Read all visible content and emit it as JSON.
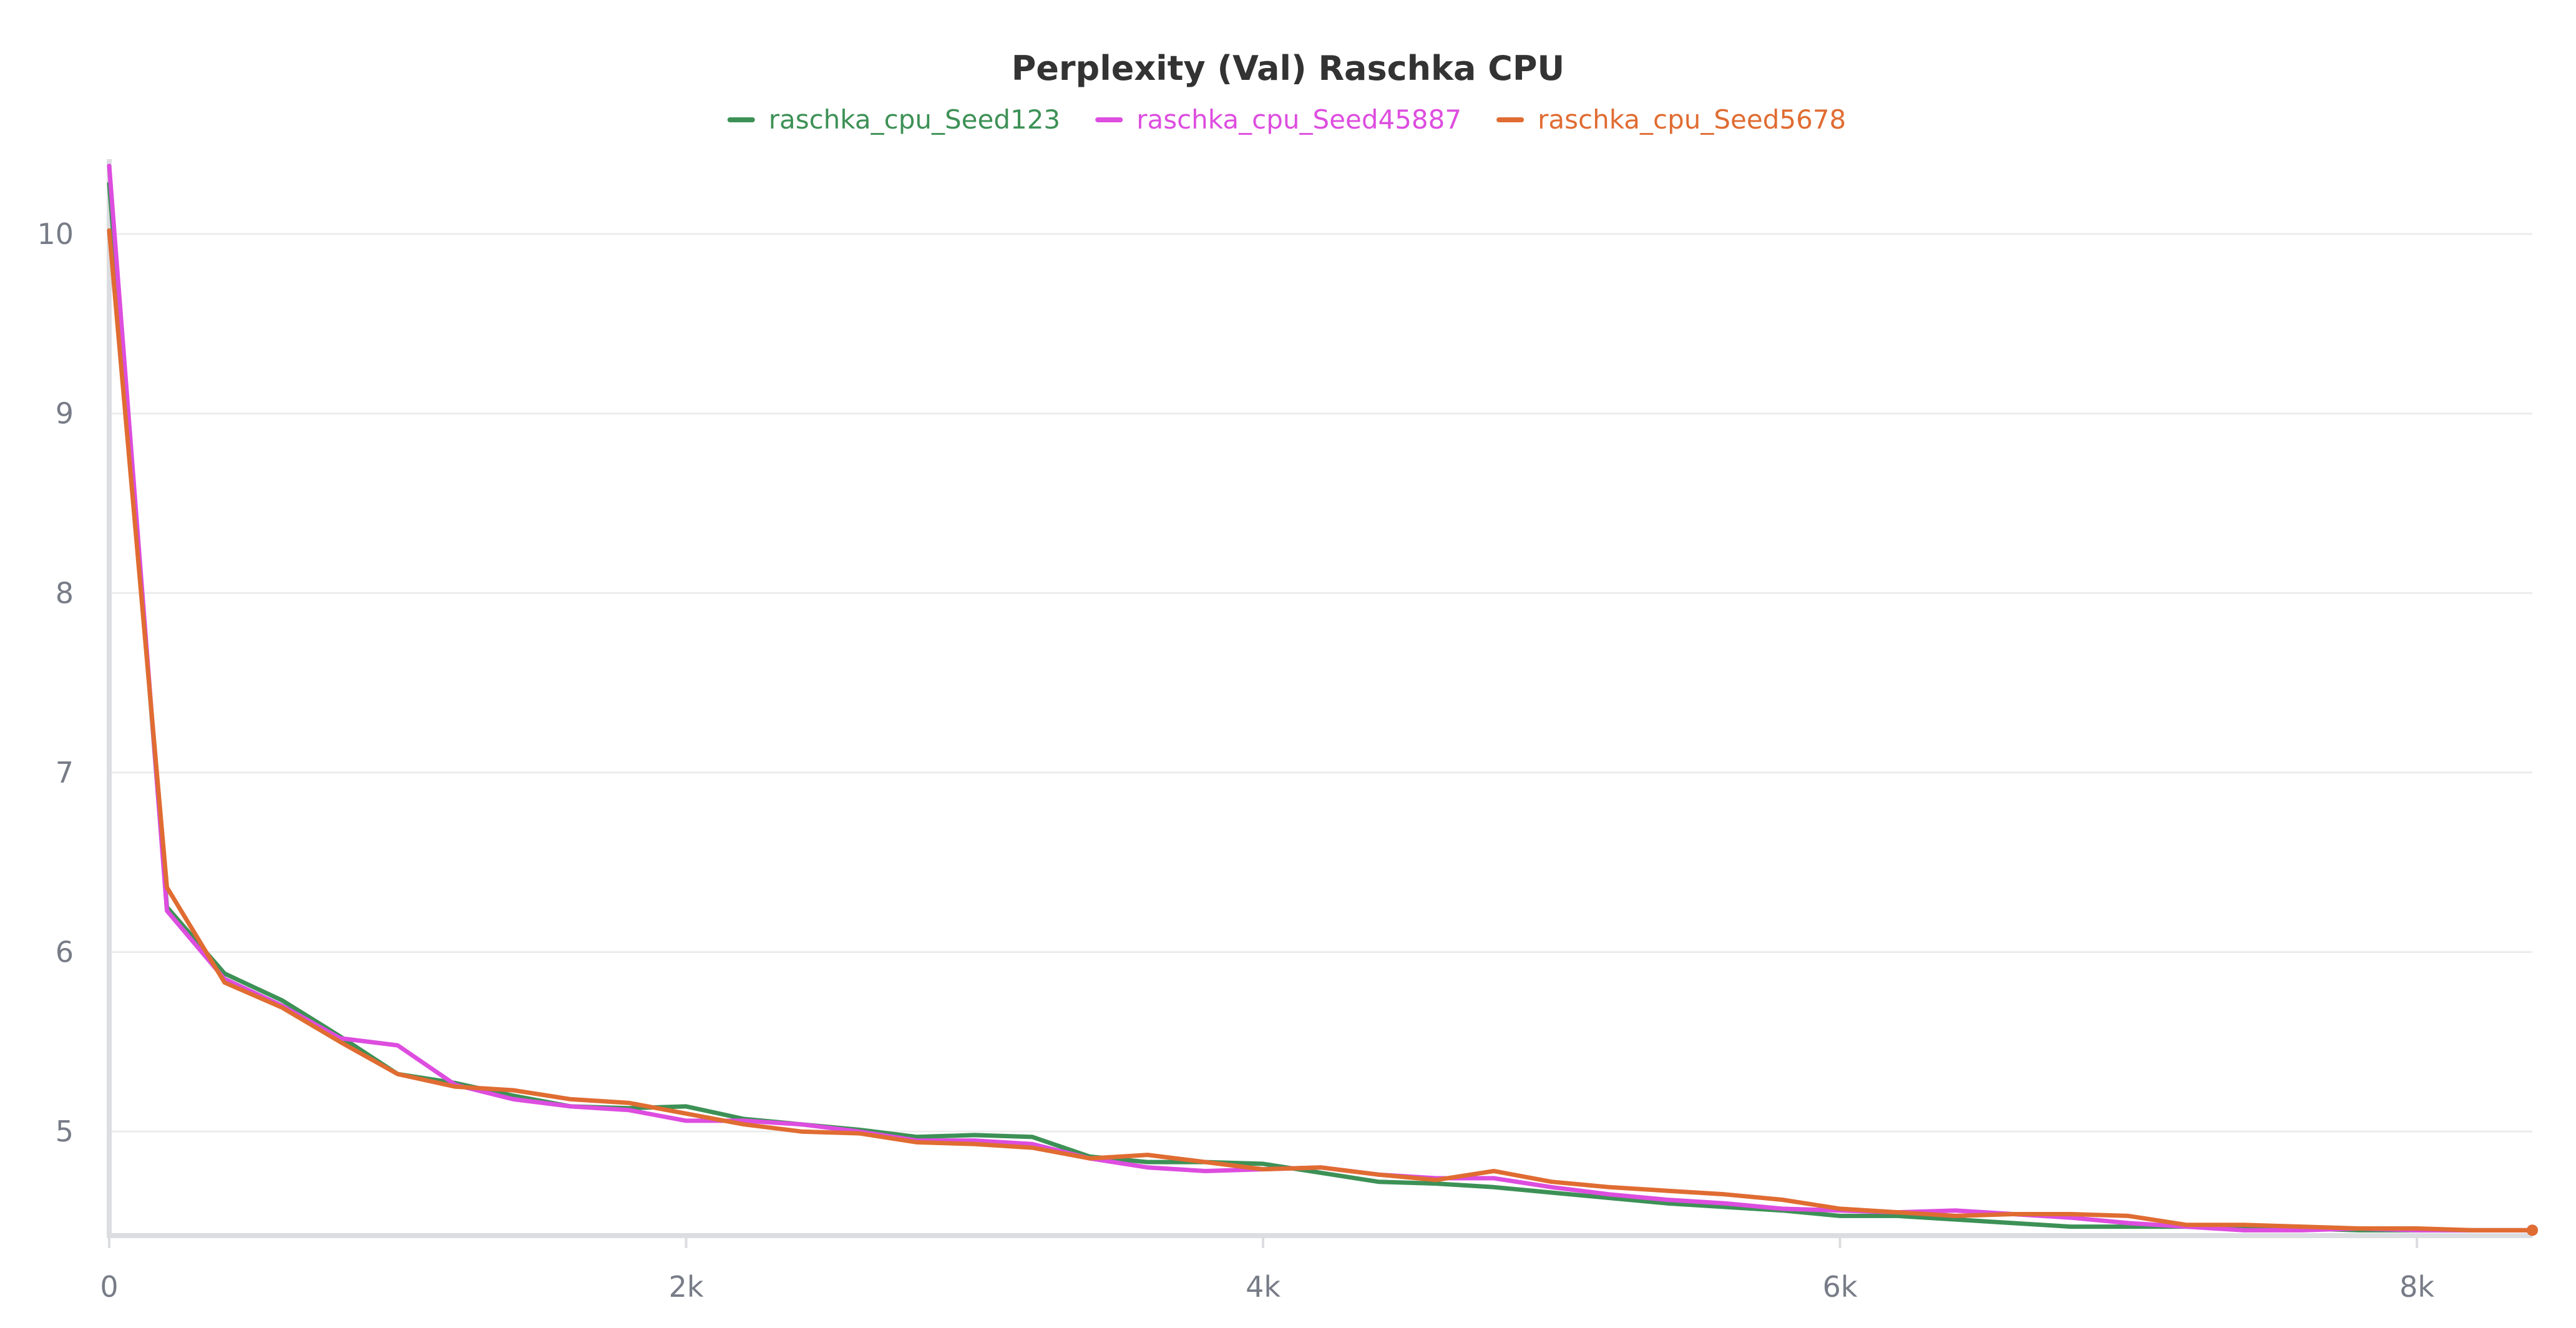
{
  "chart_data": {
    "type": "line",
    "title": "Perplexity (Val) Raschka CPU",
    "xlabel": "",
    "ylabel": "",
    "xlim": [
      0,
      8400
    ],
    "ylim": [
      4.42,
      10.4
    ],
    "x_ticks": [
      {
        "value": 0,
        "label": "0"
      },
      {
        "value": 2000,
        "label": "2k"
      },
      {
        "value": 4000,
        "label": "4k"
      },
      {
        "value": 6000,
        "label": "6k"
      },
      {
        "value": 8000,
        "label": "8k"
      }
    ],
    "y_ticks": [
      {
        "value": 5,
        "label": "5"
      },
      {
        "value": 6,
        "label": "6"
      },
      {
        "value": 7,
        "label": "7"
      },
      {
        "value": 8,
        "label": "8"
      },
      {
        "value": 9,
        "label": "9"
      },
      {
        "value": 10,
        "label": "10"
      }
    ],
    "grid": true,
    "legend_position": "top-center",
    "series": [
      {
        "name": "raschka_cpu_Seed123",
        "color": "#3d9156",
        "x": [
          0,
          200,
          400,
          600,
          800,
          1000,
          1200,
          1400,
          1600,
          1800,
          2000,
          2200,
          2400,
          2600,
          2800,
          3000,
          3200,
          3400,
          3600,
          3800,
          4000,
          4200,
          4400,
          4600,
          4800,
          5000,
          5200,
          5400,
          5600,
          5800,
          6000,
          6200,
          6400,
          6600,
          6800,
          7000,
          7200,
          7400,
          7600,
          7800,
          8000,
          8200,
          8400
        ],
        "y": [
          10.28,
          6.25,
          5.88,
          5.73,
          5.53,
          5.32,
          5.27,
          5.2,
          5.14,
          5.13,
          5.14,
          5.07,
          5.04,
          5.01,
          4.97,
          4.98,
          4.97,
          4.86,
          4.83,
          4.83,
          4.82,
          4.77,
          4.72,
          4.71,
          4.69,
          4.66,
          4.63,
          4.6,
          4.58,
          4.56,
          4.53,
          4.53,
          4.51,
          4.49,
          4.47,
          4.47,
          4.47,
          4.46,
          4.46,
          4.45,
          4.45,
          4.45,
          4.45
        ]
      },
      {
        "name": "raschka_cpu_Seed45887",
        "color": "#dd4ddf",
        "x": [
          0,
          200,
          400,
          600,
          800,
          1000,
          1200,
          1400,
          1600,
          1800,
          2000,
          2200,
          2400,
          2600,
          2800,
          3000,
          3200,
          3400,
          3600,
          3800,
          4000,
          4200,
          4400,
          4600,
          4800,
          5000,
          5200,
          5400,
          5600,
          5800,
          6000,
          6200,
          6400,
          6600,
          6800,
          7000,
          7200,
          7400,
          7600,
          7800,
          8000,
          8200,
          8400
        ],
        "y": [
          10.38,
          6.23,
          5.85,
          5.7,
          5.52,
          5.48,
          5.26,
          5.18,
          5.14,
          5.12,
          5.06,
          5.06,
          5.04,
          5.0,
          4.95,
          4.95,
          4.93,
          4.85,
          4.8,
          4.78,
          4.79,
          4.8,
          4.76,
          4.74,
          4.74,
          4.69,
          4.65,
          4.62,
          4.6,
          4.57,
          4.56,
          4.55,
          4.56,
          4.54,
          4.52,
          4.49,
          4.47,
          4.45,
          4.45,
          4.46,
          4.45,
          4.45,
          4.45
        ]
      },
      {
        "name": "raschka_cpu_Seed5678",
        "color": "#e06c32",
        "x": [
          0,
          200,
          400,
          600,
          800,
          1000,
          1200,
          1400,
          1600,
          1800,
          2000,
          2200,
          2400,
          2600,
          2800,
          3000,
          3200,
          3400,
          3600,
          3800,
          4000,
          4200,
          4400,
          4600,
          4800,
          5000,
          5200,
          5400,
          5600,
          5800,
          6000,
          6200,
          6400,
          6600,
          6800,
          7000,
          7200,
          7400,
          7600,
          7800,
          8000,
          8200,
          8400
        ],
        "y": [
          10.02,
          6.36,
          5.83,
          5.69,
          5.5,
          5.32,
          5.25,
          5.23,
          5.18,
          5.16,
          5.1,
          5.04,
          5.0,
          4.99,
          4.94,
          4.93,
          4.91,
          4.85,
          4.87,
          4.83,
          4.79,
          4.8,
          4.76,
          4.73,
          4.78,
          4.72,
          4.69,
          4.67,
          4.65,
          4.62,
          4.57,
          4.55,
          4.53,
          4.54,
          4.54,
          4.53,
          4.48,
          4.48,
          4.47,
          4.46,
          4.46,
          4.45,
          4.45
        ]
      }
    ]
  }
}
